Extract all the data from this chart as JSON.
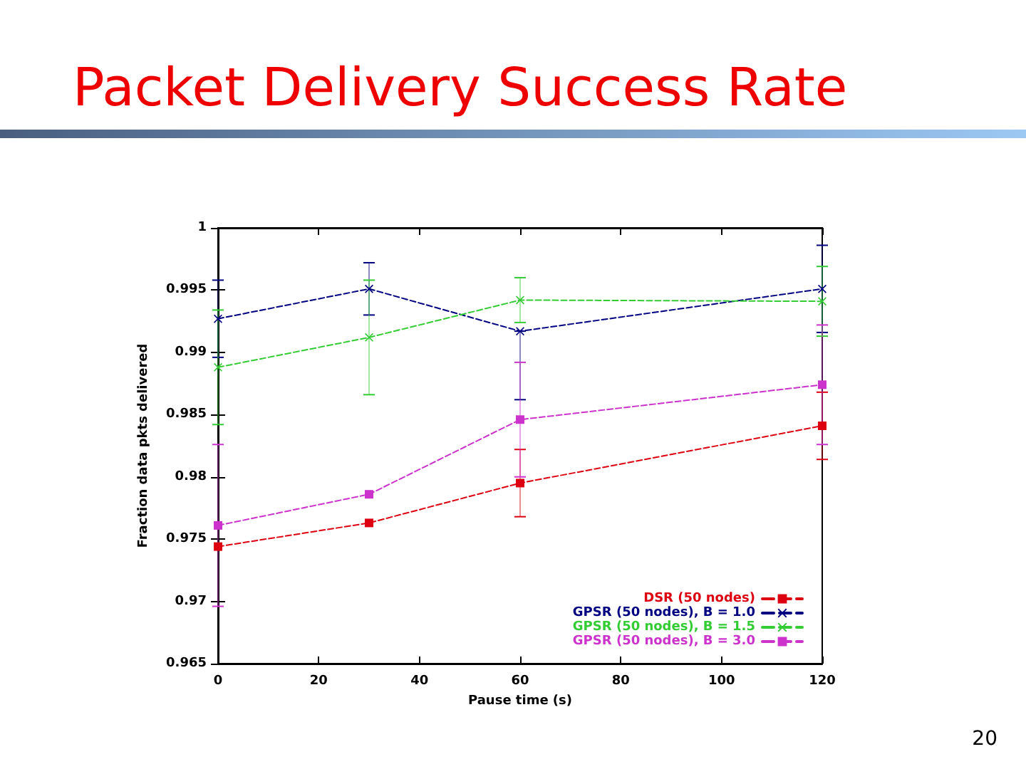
{
  "chart_data": {
    "type": "line",
    "title": "Packet Delivery Success Rate",
    "xlabel": "Pause time (s)",
    "ylabel": "Fraction data pkts delivered",
    "x": [
      0,
      30,
      60,
      120
    ],
    "series": [
      {
        "name": "DSR (50 nodes)",
        "color": "#dd0011",
        "marker": "square",
        "values": [
          0.9744,
          0.9763,
          0.9795,
          0.9841
        ],
        "errors": [
          null,
          null,
          0.0027,
          0.0027
        ]
      },
      {
        "name": "GPSR (50 nodes), B = 1.0",
        "color": "#000080",
        "marker": "cross",
        "values": [
          0.9927,
          0.9951,
          0.9917,
          0.9951
        ],
        "errors": [
          0.0031,
          0.0021,
          [
            0.9862,
            0.9917
          ],
          0.0035
        ]
      },
      {
        "name": "GPSR (50 nodes), B = 1.5",
        "color": "#33cc33",
        "marker": "cross",
        "values": [
          0.9888,
          0.9912,
          0.9942,
          0.9941
        ],
        "errors": [
          0.0046,
          0.0046,
          0.0018,
          0.0028
        ]
      },
      {
        "name": "GPSR (50 nodes), B = 3.0",
        "color": "#cc33cc",
        "marker": "square",
        "values": [
          0.9761,
          0.9786,
          0.9846,
          0.9874
        ],
        "errors": [
          0.0065,
          null,
          0.0046,
          0.0048
        ]
      }
    ],
    "xlim": [
      0,
      120
    ],
    "xticks": [
      0,
      20,
      40,
      60,
      80,
      100,
      120
    ],
    "ylim": [
      0.965,
      1
    ],
    "yticks": [
      0.965,
      0.97,
      0.975,
      0.98,
      0.985,
      0.99,
      0.995,
      1
    ],
    "grid": false,
    "legend": "bottom right",
    "line_style": "dashed",
    "annotations": [
      "20"
    ]
  }
}
